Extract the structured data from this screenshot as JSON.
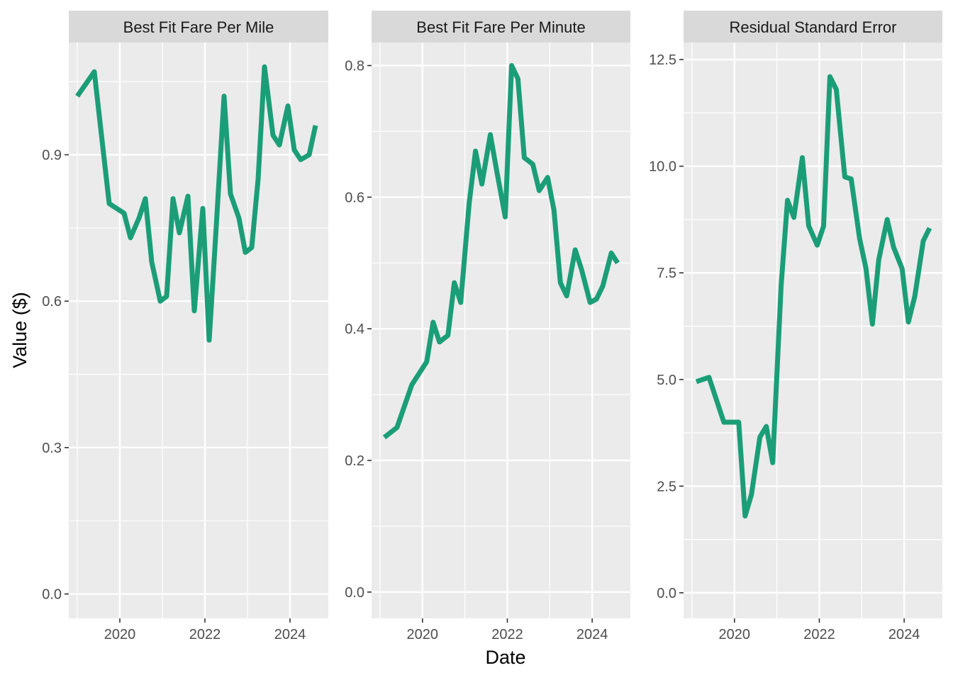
{
  "figure": {
    "xlabel": "Date",
    "ylabel": "Value ($)"
  },
  "colors": {
    "line": "#1b9e77",
    "panel_background": "#ebebeb",
    "strip_background": "#d9d9d9",
    "grid": "#ffffff"
  },
  "chart_data": [
    {
      "type": "line",
      "title": "Best Fit Fare Per Mile",
      "x_ticks": [
        2020,
        2022,
        2024
      ],
      "y_ticks": [
        0.0,
        0.3,
        0.6,
        0.9
      ],
      "y_tick_labels": [
        "0.0",
        "0.3",
        "0.6",
        "0.9"
      ],
      "xlim": [
        2018.8,
        2024.9
      ],
      "ylim": [
        -0.05,
        1.13
      ],
      "series": [
        {
          "x": [
            2019.0,
            2019.4,
            2019.75,
            2020.1,
            2020.25,
            2020.45,
            2020.6,
            2020.75,
            2020.95,
            2021.1,
            2021.25,
            2021.4,
            2021.6,
            2021.75,
            2021.95,
            2022.1,
            2022.25,
            2022.45,
            2022.6,
            2022.8,
            2022.95,
            2023.1,
            2023.25,
            2023.4,
            2023.6,
            2023.75,
            2023.95,
            2024.1,
            2024.25,
            2024.45,
            2024.6
          ],
          "values": [
            1.02,
            1.07,
            0.8,
            0.78,
            0.73,
            0.77,
            0.81,
            0.68,
            0.6,
            0.61,
            0.81,
            0.74,
            0.815,
            0.58,
            0.79,
            0.52,
            0.73,
            1.02,
            0.82,
            0.77,
            0.7,
            0.71,
            0.85,
            1.08,
            0.94,
            0.92,
            1.0,
            0.91,
            0.89,
            0.9,
            0.96
          ]
        }
      ]
    },
    {
      "type": "line",
      "title": "Best Fit Fare Per Minute",
      "x_ticks": [
        2020,
        2022,
        2024
      ],
      "y_ticks": [
        0.0,
        0.2,
        0.4,
        0.6,
        0.8
      ],
      "y_tick_labels": [
        "0.0",
        "0.2",
        "0.4",
        "0.6",
        "0.8"
      ],
      "xlim": [
        2018.8,
        2024.9
      ],
      "ylim": [
        -0.04,
        0.835
      ],
      "series": [
        {
          "x": [
            2019.1,
            2019.4,
            2019.75,
            2020.1,
            2020.25,
            2020.4,
            2020.6,
            2020.75,
            2020.9,
            2021.1,
            2021.25,
            2021.4,
            2021.6,
            2021.75,
            2021.95,
            2022.1,
            2022.25,
            2022.4,
            2022.6,
            2022.75,
            2022.95,
            2023.1,
            2023.25,
            2023.4,
            2023.6,
            2023.75,
            2023.95,
            2024.1,
            2024.25,
            2024.45,
            2024.6
          ],
          "values": [
            0.235,
            0.25,
            0.315,
            0.35,
            0.41,
            0.38,
            0.39,
            0.47,
            0.44,
            0.59,
            0.67,
            0.62,
            0.695,
            0.64,
            0.57,
            0.8,
            0.78,
            0.66,
            0.65,
            0.61,
            0.63,
            0.58,
            0.47,
            0.45,
            0.52,
            0.49,
            0.44,
            0.445,
            0.465,
            0.515,
            0.5
          ]
        }
      ]
    },
    {
      "type": "line",
      "title": "Residual Standard Error",
      "x_ticks": [
        2020,
        2022,
        2024
      ],
      "y_ticks": [
        0.0,
        2.5,
        5.0,
        7.5,
        10.0,
        12.5
      ],
      "y_tick_labels": [
        "0.0",
        "2.5",
        "5.0",
        "7.5",
        "10.0",
        "12.5"
      ],
      "xlim": [
        2018.8,
        2024.9
      ],
      "ylim": [
        -0.6,
        12.9
      ],
      "series": [
        {
          "x": [
            2019.1,
            2019.4,
            2019.75,
            2020.1,
            2020.25,
            2020.4,
            2020.6,
            2020.75,
            2020.9,
            2021.1,
            2021.25,
            2021.4,
            2021.6,
            2021.75,
            2021.95,
            2022.1,
            2022.25,
            2022.4,
            2022.6,
            2022.75,
            2022.95,
            2023.1,
            2023.25,
            2023.4,
            2023.6,
            2023.75,
            2023.95,
            2024.1,
            2024.25,
            2024.45,
            2024.6
          ],
          "values": [
            4.95,
            5.05,
            4.0,
            4.0,
            1.8,
            2.3,
            3.65,
            3.9,
            3.05,
            7.2,
            9.2,
            8.8,
            10.2,
            8.6,
            8.15,
            8.6,
            12.1,
            11.8,
            9.75,
            9.7,
            8.3,
            7.6,
            6.3,
            7.8,
            8.75,
            8.1,
            7.6,
            6.35,
            6.95,
            8.25,
            8.55
          ]
        }
      ]
    }
  ]
}
